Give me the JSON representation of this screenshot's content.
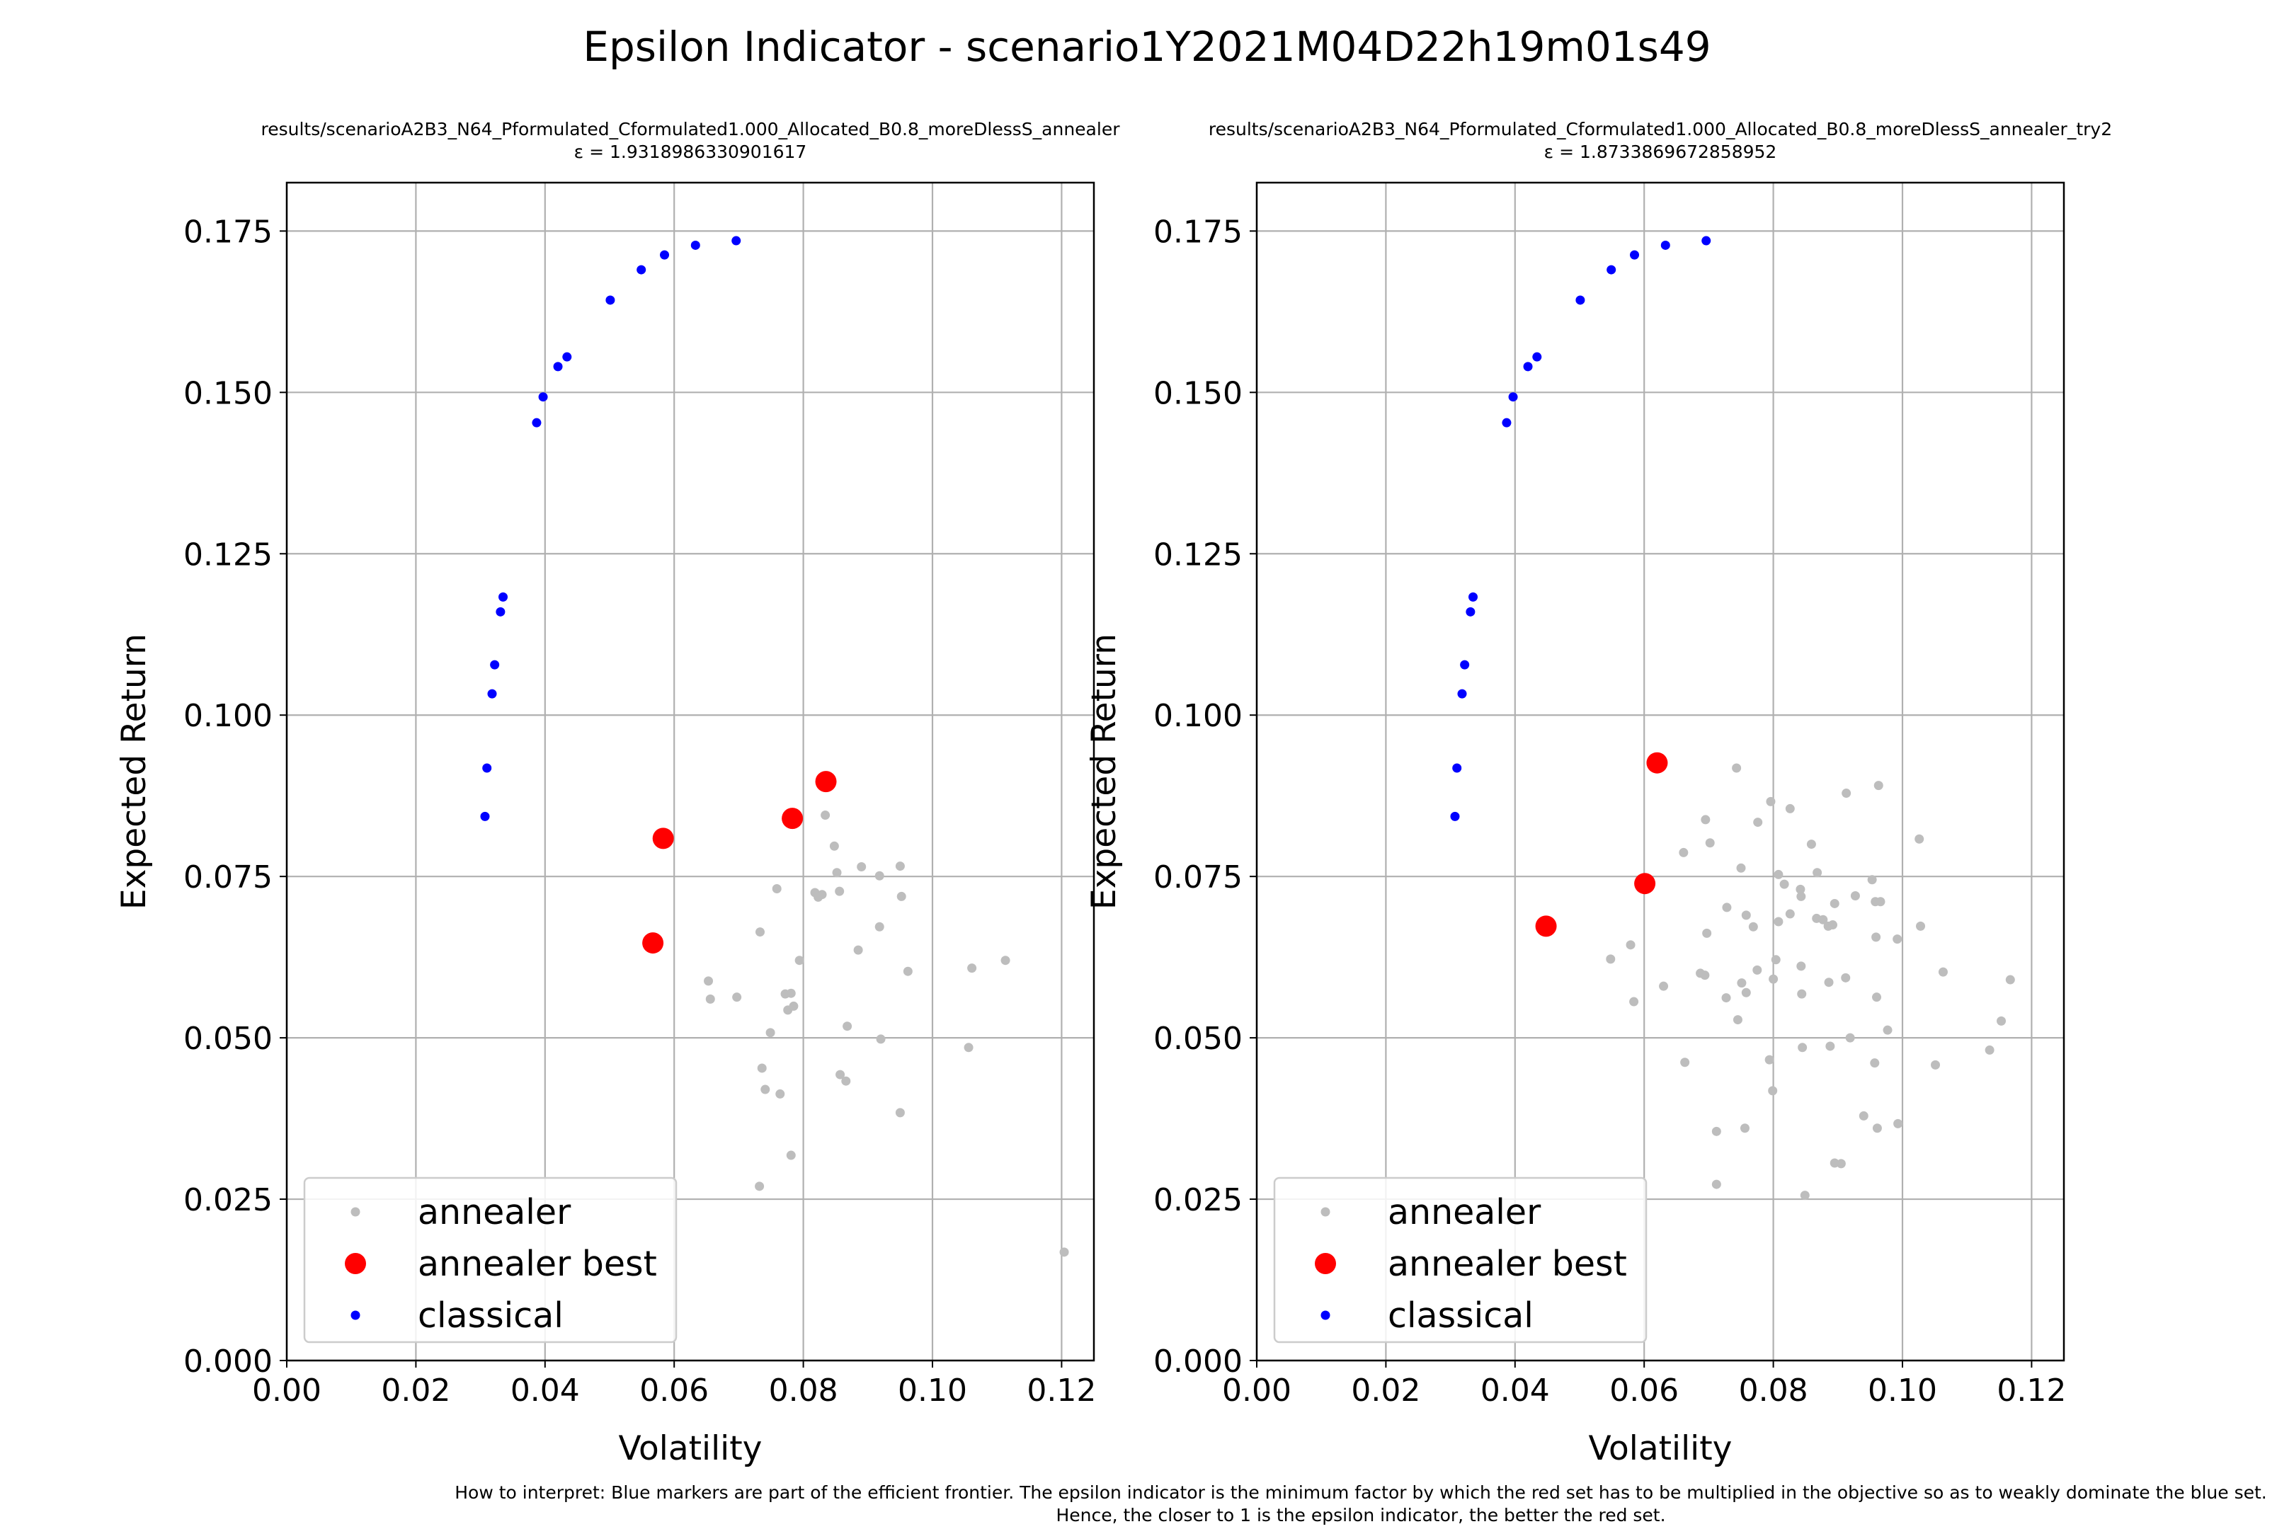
{
  "figure": {
    "suptitle": "Epsilon Indicator - scenario1Y2021M04D22h19m01s49",
    "footnote_line1": "How to interpret: Blue markers are part of the efficient frontier. The epsilon indicator is the minimum factor by which the red set has to be multiplied in the objective so as to weakly dominate the blue set.",
    "footnote_line2": "Hence, the closer to 1 is the epsilon indicator, the better the red set."
  },
  "colors": {
    "annealer": "#bdbdbd",
    "annealer_best": "#ff0000",
    "classical": "#0000ff",
    "grid": "#b0b0b0"
  },
  "chart_data": [
    {
      "type": "scatter",
      "title": "results/scenarioA2B3_N64_Pformulated_Cformulated1.000_Allocated_B0.8_moreDlessS_annealer",
      "subtitle": "ε = 1.9318986330901617",
      "xlabel": "Volatility",
      "ylabel": "Expected Return",
      "xlim": [
        0,
        0.125
      ],
      "ylim": [
        0,
        0.1825
      ],
      "xticks": [
        "0.00",
        "0.02",
        "0.04",
        "0.06",
        "0.08",
        "0.10",
        "0.12"
      ],
      "yticks": [
        "0.000",
        "0.025",
        "0.050",
        "0.075",
        "0.100",
        "0.125",
        "0.150",
        "0.175"
      ],
      "grid": true,
      "legend_position": "lower-left",
      "series": [
        {
          "name": "annealer",
          "marker": "small-circle",
          "x": [
            0.0834,
            0.0848,
            0.0852,
            0.0759,
            0.0818,
            0.0823,
            0.0829,
            0.0856,
            0.089,
            0.0918,
            0.095,
            0.0952,
            0.0733,
            0.0918,
            0.0885,
            0.0962,
            0.0653,
            0.0656,
            0.0697,
            0.0794,
            0.0772,
            0.0776,
            0.0785,
            0.0781,
            0.0749,
            0.0868,
            0.092,
            0.0736,
            0.0741,
            0.0764,
            0.0857,
            0.0866,
            0.095,
            0.0781,
            0.0732,
            0.1061,
            0.1113,
            0.1056,
            0.1204
          ],
          "y": [
            0.0845,
            0.0797,
            0.0756,
            0.0731,
            0.0725,
            0.0718,
            0.0722,
            0.0727,
            0.0765,
            0.0751,
            0.0766,
            0.0719,
            0.0664,
            0.0672,
            0.0636,
            0.0603,
            0.0588,
            0.056,
            0.0563,
            0.062,
            0.0568,
            0.0543,
            0.0549,
            0.0569,
            0.0508,
            0.0518,
            0.0498,
            0.0453,
            0.042,
            0.0413,
            0.0443,
            0.0433,
            0.0384,
            0.0318,
            0.027,
            0.0608,
            0.062,
            0.0485,
            0.0168
          ]
        },
        {
          "name": "annealer best",
          "marker": "large-circle",
          "x": [
            0.0835,
            0.0783,
            0.0583,
            0.0567
          ],
          "y": [
            0.0897,
            0.084,
            0.0809,
            0.0647
          ]
        },
        {
          "name": "classical",
          "marker": "small-circle",
          "x": [
            0.0307,
            0.031,
            0.0318,
            0.0322,
            0.0331,
            0.0335,
            0.0387,
            0.0397,
            0.042,
            0.0434,
            0.0501,
            0.0549,
            0.0585,
            0.0633,
            0.0696
          ],
          "y": [
            0.0843,
            0.0918,
            0.1033,
            0.1078,
            0.116,
            0.1183,
            0.1453,
            0.1493,
            0.154,
            0.1555,
            0.1643,
            0.169,
            0.1713,
            0.1728,
            0.1735
          ]
        }
      ]
    },
    {
      "type": "scatter",
      "title": "results/scenarioA2B3_N64_Pformulated_Cformulated1.000_Allocated_B0.8_moreDlessS_annealer_try2",
      "subtitle": "ε = 1.8733869672858952",
      "xlabel": "Volatility",
      "ylabel": "Expected Return",
      "xlim": [
        0,
        0.125
      ],
      "ylim": [
        0,
        0.1825
      ],
      "xticks": [
        "0.00",
        "0.02",
        "0.04",
        "0.06",
        "0.08",
        "0.10",
        "0.12"
      ],
      "yticks": [
        "0.000",
        "0.025",
        "0.050",
        "0.075",
        "0.100",
        "0.125",
        "0.150",
        "0.175"
      ],
      "grid": true,
      "legend_position": "lower-left",
      "series": [
        {
          "name": "annealer",
          "marker": "small-circle",
          "x": [
            0.0743,
            0.0963,
            0.0913,
            0.0695,
            0.0796,
            0.0826,
            0.0702,
            0.0661,
            0.0776,
            0.0859,
            0.0868,
            0.0953,
            0.0808,
            0.1026,
            0.075,
            0.0842,
            0.0817,
            0.0843,
            0.0867,
            0.0927,
            0.0958,
            0.0966,
            0.0895,
            0.0808,
            0.0728,
            0.0758,
            0.0697,
            0.0769,
            0.0826,
            0.0877,
            0.0885,
            0.0892,
            0.0959,
            0.0992,
            0.1028,
            0.0843,
            0.0804,
            0.0775,
            0.0548,
            0.0579,
            0.063,
            0.0694,
            0.0687,
            0.0886,
            0.0912,
            0.1063,
            0.1167,
            0.0844,
            0.0751,
            0.0727,
            0.0758,
            0.0584,
            0.08,
            0.0977,
            0.0745,
            0.1153,
            0.0919,
            0.0888,
            0.096,
            0.0663,
            0.0845,
            0.0794,
            0.0957,
            0.1051,
            0.1135,
            0.0799,
            0.094,
            0.0961,
            0.0712,
            0.0756,
            0.0905,
            0.0895,
            0.0993,
            0.0712,
            0.0849
          ],
          "y": [
            0.0918,
            0.0891,
            0.0879,
            0.0838,
            0.0866,
            0.0855,
            0.0802,
            0.0787,
            0.0834,
            0.08,
            0.0756,
            0.0745,
            0.0753,
            0.0808,
            0.0763,
            0.073,
            0.0738,
            0.0719,
            0.0685,
            0.072,
            0.0711,
            0.0711,
            0.0708,
            0.068,
            0.0702,
            0.069,
            0.0662,
            0.0672,
            0.0692,
            0.0683,
            0.0673,
            0.0675,
            0.0656,
            0.0653,
            0.0673,
            0.0611,
            0.0621,
            0.0605,
            0.0622,
            0.0644,
            0.058,
            0.0597,
            0.06,
            0.0586,
            0.0593,
            0.0602,
            0.059,
            0.0568,
            0.0585,
            0.0562,
            0.057,
            0.0556,
            0.0591,
            0.0512,
            0.0528,
            0.0526,
            0.05,
            0.0487,
            0.0563,
            0.0462,
            0.0485,
            0.0466,
            0.0461,
            0.0458,
            0.0481,
            0.0418,
            0.0379,
            0.036,
            0.0355,
            0.036,
            0.0305,
            0.0306,
            0.0367,
            0.0273,
            0.0256
          ]
        },
        {
          "name": "annealer best",
          "marker": "large-circle",
          "x": [
            0.062,
            0.0601,
            0.0448
          ],
          "y": [
            0.0926,
            0.0739,
            0.0673
          ]
        },
        {
          "name": "classical",
          "marker": "small-circle",
          "x": [
            0.0307,
            0.031,
            0.0318,
            0.0322,
            0.0331,
            0.0335,
            0.0387,
            0.0397,
            0.042,
            0.0434,
            0.0501,
            0.0549,
            0.0585,
            0.0633,
            0.0696
          ],
          "y": [
            0.0843,
            0.0918,
            0.1033,
            0.1078,
            0.116,
            0.1183,
            0.1453,
            0.1493,
            0.154,
            0.1555,
            0.1643,
            0.169,
            0.1713,
            0.1728,
            0.1735
          ]
        }
      ]
    }
  ]
}
